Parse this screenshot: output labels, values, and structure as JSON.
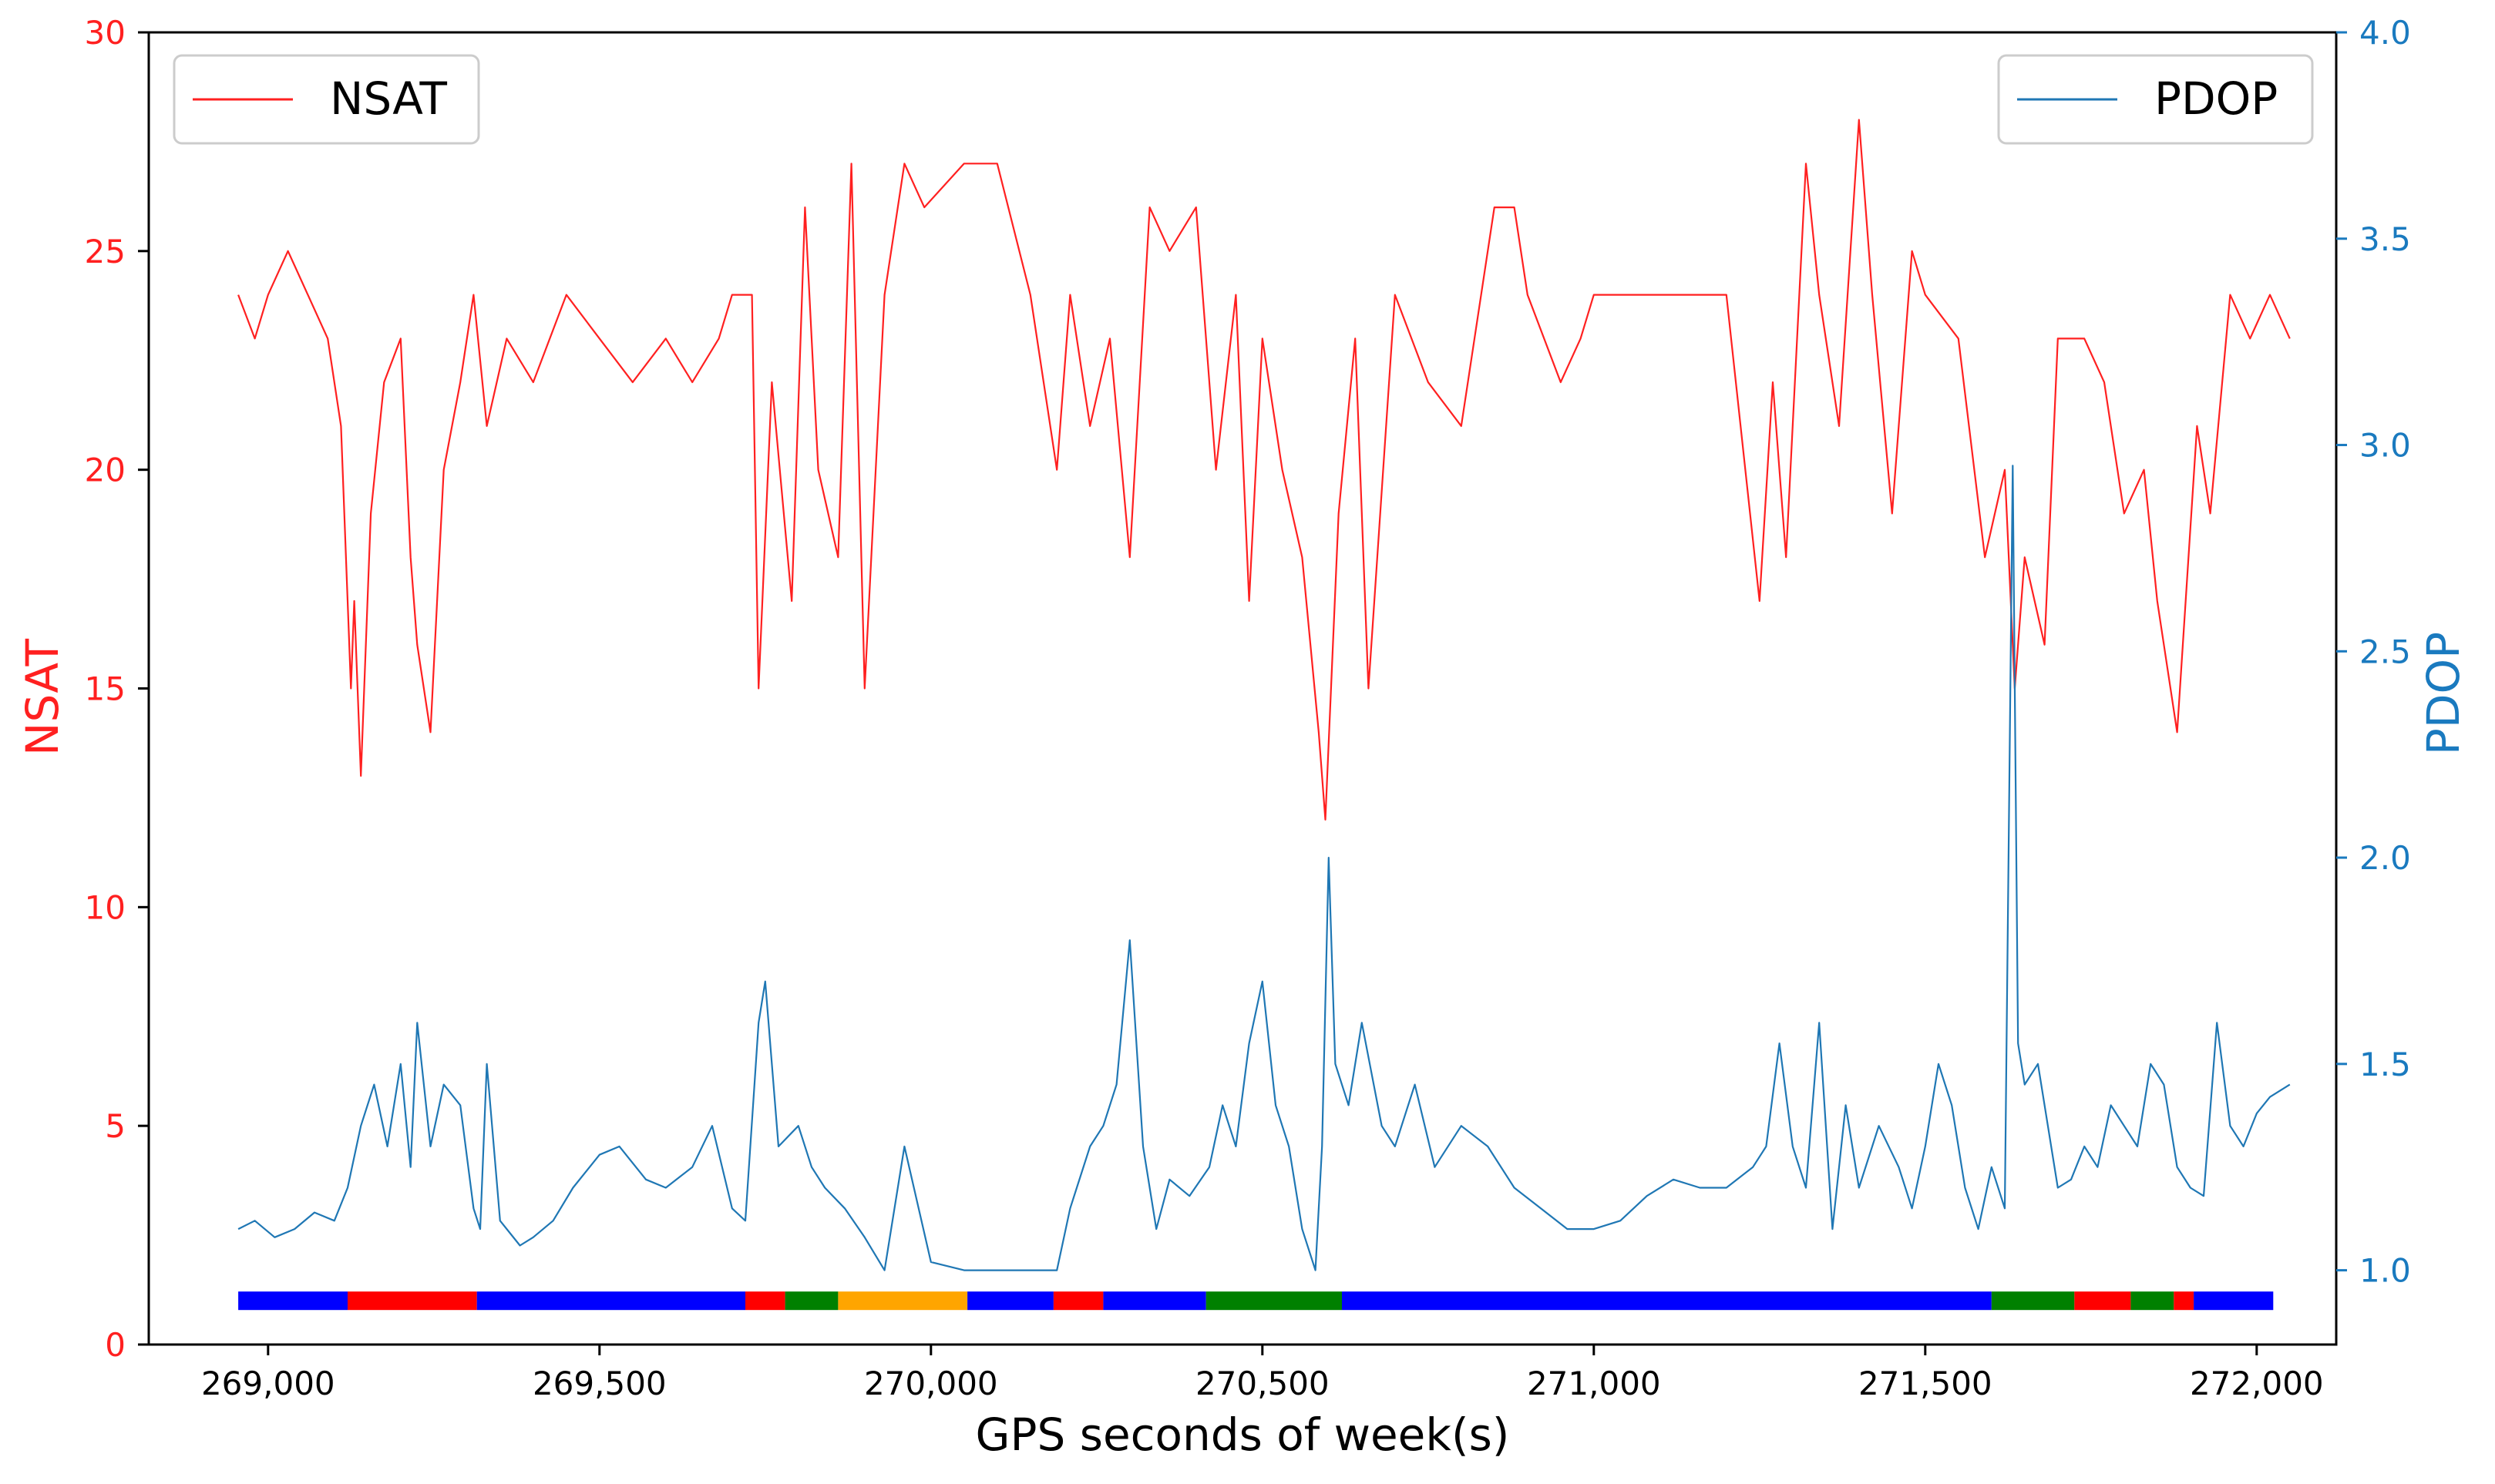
{
  "chart_data": {
    "type": "line",
    "xlabel": "GPS seconds of week(s)",
    "ylabel_left": "NSAT",
    "ylabel_right": "PDOP",
    "xlim": [
      268820,
      272120
    ],
    "ylim_left": [
      0,
      30
    ],
    "ylim_right": [
      0.82,
      4.0
    ],
    "x_ticks": [
      269000,
      269500,
      270000,
      270500,
      271000,
      271500,
      272000
    ],
    "x_tick_labels": [
      "269,000",
      "269,500",
      "270,000",
      "270,500",
      "271,000",
      "271,500",
      "272,000"
    ],
    "y_left_ticks": [
      0,
      5,
      10,
      15,
      20,
      25,
      30
    ],
    "y_left_tick_labels": [
      "0",
      "5",
      "10",
      "15",
      "20",
      "25",
      "30"
    ],
    "y_right_ticks": [
      1.0,
      1.5,
      2.0,
      2.5,
      3.0,
      3.5,
      4.0
    ],
    "y_right_tick_labels": [
      "1.0",
      "1.5",
      "2.0",
      "2.5",
      "3.0",
      "3.5",
      "4.0"
    ],
    "legend_left": {
      "label": "NSAT",
      "position": "top-left"
    },
    "legend_right": {
      "label": "PDOP",
      "position": "top-right"
    },
    "colors": {
      "nsat": "#ff2020",
      "pdop": "#1f77b4",
      "axis_left": "#ff2020",
      "axis_right": "#1a7abf"
    },
    "series": [
      {
        "name": "NSAT",
        "axis": "left",
        "x": [
          268955,
          268980,
          269000,
          269030,
          269060,
          269090,
          269110,
          269125,
          269130,
          269140,
          269155,
          269175,
          269200,
          269215,
          269225,
          269245,
          269265,
          269290,
          269310,
          269330,
          269360,
          269400,
          269450,
          269500,
          269550,
          269600,
          269640,
          269680,
          269700,
          269730,
          269740,
          269760,
          269790,
          269810,
          269830,
          269860,
          269880,
          269900,
          269930,
          269960,
          269990,
          270050,
          270100,
          270150,
          270190,
          270210,
          270240,
          270270,
          270300,
          270330,
          270360,
          270400,
          270430,
          270460,
          270480,
          270500,
          270530,
          270560,
          270585,
          270595,
          270615,
          270640,
          270660,
          270700,
          270750,
          270800,
          270850,
          270880,
          270900,
          270950,
          270980,
          271000,
          271050,
          271100,
          271150,
          271200,
          271250,
          271270,
          271290,
          271320,
          271340,
          271370,
          271400,
          271420,
          271450,
          271480,
          271500,
          271550,
          271590,
          271620,
          271635,
          271650,
          271680,
          271700,
          271740,
          271770,
          271800,
          271830,
          271850,
          271880,
          271910,
          271930,
          271960,
          271990,
          272020,
          272050
        ],
        "y": [
          24,
          23,
          24,
          25,
          24,
          23,
          21,
          15,
          17,
          13,
          19,
          22,
          23,
          18,
          16,
          14,
          20,
          22,
          24,
          21,
          23,
          22,
          24,
          23,
          22,
          23,
          22,
          23,
          24,
          24,
          15,
          22,
          17,
          26,
          20,
          18,
          27,
          15,
          24,
          27,
          26,
          27,
          27,
          24,
          20,
          24,
          21,
          23,
          18,
          26,
          25,
          26,
          20,
          24,
          17,
          23,
          20,
          18,
          14,
          12,
          19,
          23,
          15,
          24,
          22,
          21,
          26,
          26,
          24,
          22,
          23,
          24,
          24,
          24,
          24,
          24,
          17,
          22,
          18,
          27,
          24,
          21,
          28,
          24,
          19,
          25,
          24,
          23,
          18,
          20,
          15,
          18,
          16,
          23,
          23,
          22,
          19,
          20,
          17,
          14,
          21,
          19,
          24,
          23,
          24,
          23
        ]
      },
      {
        "name": "PDOP",
        "axis": "right",
        "x": [
          268955,
          268980,
          269010,
          269040,
          269070,
          269100,
          269120,
          269140,
          269160,
          269180,
          269200,
          269215,
          269225,
          269245,
          269265,
          269290,
          269310,
          269320,
          269330,
          269350,
          269380,
          269400,
          269430,
          269460,
          269500,
          269530,
          269570,
          269600,
          269640,
          269670,
          269700,
          269720,
          269740,
          269750,
          269770,
          269800,
          269820,
          269840,
          269870,
          269900,
          269930,
          269960,
          270000,
          270050,
          270100,
          270150,
          270190,
          270210,
          270240,
          270260,
          270280,
          270300,
          270320,
          270340,
          270360,
          270390,
          270420,
          270440,
          270460,
          270480,
          270500,
          270520,
          270540,
          270560,
          270580,
          270590,
          270600,
          270610,
          270630,
          270650,
          270680,
          270700,
          270730,
          270760,
          270800,
          270840,
          270880,
          270920,
          270960,
          271000,
          271040,
          271080,
          271120,
          271160,
          271200,
          271240,
          271260,
          271280,
          271300,
          271320,
          271340,
          271360,
          271380,
          271400,
          271430,
          271460,
          271480,
          271500,
          271520,
          271540,
          271560,
          271580,
          271600,
          271620,
          271632,
          271640,
          271650,
          271670,
          271700,
          271720,
          271740,
          271760,
          271780,
          271800,
          271820,
          271840,
          271860,
          271880,
          271900,
          271920,
          271940,
          271960,
          271980,
          272000,
          272020,
          272050
        ],
        "y": [
          1.1,
          1.12,
          1.08,
          1.1,
          1.14,
          1.12,
          1.2,
          1.35,
          1.45,
          1.3,
          1.5,
          1.25,
          1.6,
          1.3,
          1.45,
          1.4,
          1.15,
          1.1,
          1.5,
          1.12,
          1.06,
          1.08,
          1.12,
          1.2,
          1.28,
          1.3,
          1.22,
          1.2,
          1.25,
          1.35,
          1.15,
          1.12,
          1.6,
          1.7,
          1.3,
          1.35,
          1.25,
          1.2,
          1.15,
          1.08,
          1.0,
          1.3,
          1.02,
          1.0,
          1.0,
          1.0,
          1.0,
          1.15,
          1.3,
          1.35,
          1.45,
          1.8,
          1.3,
          1.1,
          1.22,
          1.18,
          1.25,
          1.4,
          1.3,
          1.55,
          1.7,
          1.4,
          1.3,
          1.1,
          1.0,
          1.3,
          2.0,
          1.5,
          1.4,
          1.6,
          1.35,
          1.3,
          1.45,
          1.25,
          1.35,
          1.3,
          1.2,
          1.15,
          1.1,
          1.1,
          1.12,
          1.18,
          1.22,
          1.2,
          1.2,
          1.25,
          1.3,
          1.55,
          1.3,
          1.2,
          1.6,
          1.1,
          1.4,
          1.2,
          1.35,
          1.25,
          1.15,
          1.3,
          1.5,
          1.4,
          1.2,
          1.1,
          1.25,
          1.15,
          2.95,
          1.55,
          1.45,
          1.5,
          1.2,
          1.22,
          1.3,
          1.25,
          1.4,
          1.35,
          1.3,
          1.5,
          1.45,
          1.25,
          1.2,
          1.18,
          1.6,
          1.35,
          1.3,
          1.38,
          1.42,
          1.45
        ]
      }
    ],
    "segment_bar": {
      "level": 1,
      "segments": [
        {
          "start": 268955,
          "end": 269120,
          "color": "#0000ff"
        },
        {
          "start": 269120,
          "end": 269315,
          "color": "#ff0000"
        },
        {
          "start": 269315,
          "end": 269720,
          "color": "#0000ff"
        },
        {
          "start": 269720,
          "end": 269780,
          "color": "#ff0000"
        },
        {
          "start": 269780,
          "end": 269860,
          "color": "#008000"
        },
        {
          "start": 269860,
          "end": 270055,
          "color": "#ffa500"
        },
        {
          "start": 270055,
          "end": 270185,
          "color": "#0000ff"
        },
        {
          "start": 270185,
          "end": 270260,
          "color": "#ff0000"
        },
        {
          "start": 270260,
          "end": 270415,
          "color": "#0000ff"
        },
        {
          "start": 270415,
          "end": 270620,
          "color": "#008000"
        },
        {
          "start": 270620,
          "end": 271600,
          "color": "#0000ff"
        },
        {
          "start": 271600,
          "end": 271725,
          "color": "#008000"
        },
        {
          "start": 271725,
          "end": 271810,
          "color": "#ff0000"
        },
        {
          "start": 271810,
          "end": 271875,
          "color": "#008000"
        },
        {
          "start": 271875,
          "end": 271905,
          "color": "#ff0000"
        },
        {
          "start": 271905,
          "end": 272025,
          "color": "#0000ff"
        }
      ]
    }
  }
}
